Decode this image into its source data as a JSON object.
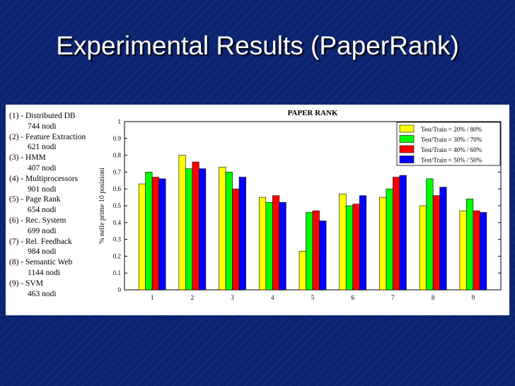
{
  "slide": {
    "title": "Experimental Results (PaperRank)"
  },
  "dataset_list": [
    {
      "label": "(1) - Distributed DB",
      "nodes": "744 nodi"
    },
    {
      "label": "(2) - Feature Extraction",
      "nodes": "621 nodi"
    },
    {
      "label": "(3) - HMM",
      "nodes": "407 nodi"
    },
    {
      "label": "(4) - Multiprocessors",
      "nodes": "901 nodi"
    },
    {
      "label": "(5) - Page Rank",
      "nodes": "654 nodi"
    },
    {
      "label": "(6) - Rec. System",
      "nodes": "699 nodi"
    },
    {
      "label": "(7) - Rel. Feedback",
      "nodes": "984 nodi"
    },
    {
      "label": "(8) - Semantic Web",
      "nodes": "1144 nodi"
    },
    {
      "label": "(9) - SVM",
      "nodes": "463 nodi"
    }
  ],
  "chart_data": {
    "type": "bar",
    "title": "PAPER RANK",
    "ylabel": "% nelle prime 10 posizioni",
    "ylim": [
      0,
      1
    ],
    "yticks": [
      "0",
      "0.1",
      "0.2",
      "0.3",
      "0.4",
      "0.5",
      "0.6",
      "0.7",
      "0.8",
      "0.9",
      "1"
    ],
    "categories": [
      "1",
      "2",
      "3",
      "4",
      "5",
      "6",
      "7",
      "8",
      "9"
    ],
    "legend_position": "top-right",
    "series": [
      {
        "name": "Test/Train = 20% / 80%",
        "color": "#ffff00",
        "values": [
          0.63,
          0.8,
          0.73,
          0.55,
          0.23,
          0.57,
          0.55,
          0.5,
          0.47
        ]
      },
      {
        "name": "Test/Train = 30% / 70%",
        "color": "#00ff00",
        "values": [
          0.7,
          0.72,
          0.7,
          0.52,
          0.46,
          0.5,
          0.6,
          0.66,
          0.54
        ]
      },
      {
        "name": "Test/Train = 40% / 60%",
        "color": "#ff0000",
        "values": [
          0.67,
          0.76,
          0.6,
          0.56,
          0.47,
          0.51,
          0.67,
          0.56,
          0.47
        ]
      },
      {
        "name": "Test/Train = 50% / 50%",
        "color": "#0000ff",
        "values": [
          0.66,
          0.72,
          0.67,
          0.52,
          0.41,
          0.56,
          0.68,
          0.61,
          0.46
        ]
      }
    ]
  }
}
